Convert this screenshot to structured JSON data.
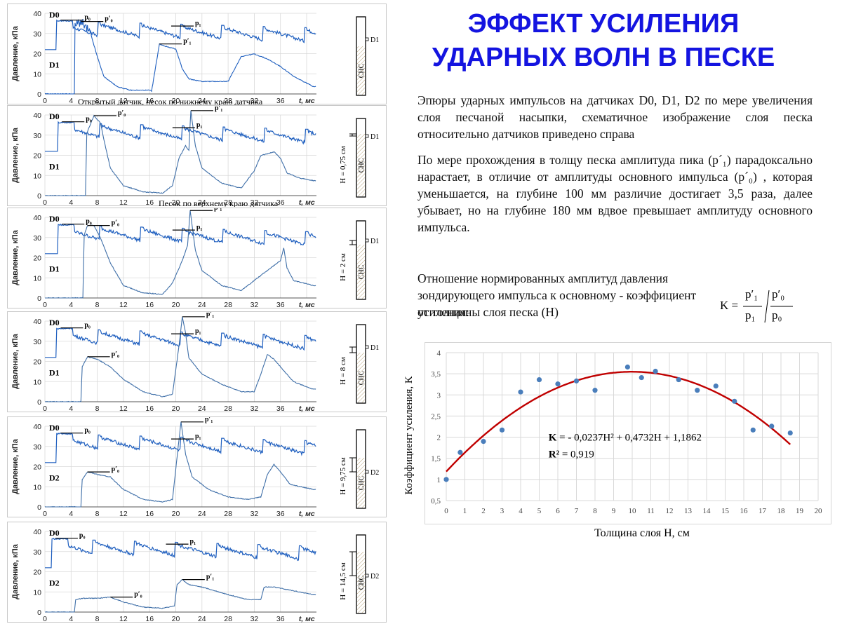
{
  "title": {
    "line1": "ЭФФЕКТ УСИЛЕНИЯ",
    "line2": "УДАРНЫХ ВОЛН В ПЕСКЕ"
  },
  "text": {
    "p1": "Эпюры ударных импульсов на датчиках D0, D1, D2 по мере увеличения слоя песчаной насыпки, схематичное изображение слоя песка относительно датчиков приведено справа",
    "p2": "По мере прохождения в толщу песка амплитуда пика (p´₁) парадоксально нарастает, в отличие от амплитуды основного импульса (p´₀) , которая уменьшается, на глубине 100 мм различие достигает 3,5 раза, далее убывает, но на глубине 180 мм вдвое превышает амплитуду основного импульса.",
    "p3": "Отношение нормированных амплитуд давления зондирующего импульса к основному - коэффициент усиления:",
    "p3b": " от толщины слоя песка (H)"
  },
  "formula": {
    "lhs": "K =",
    "num1": "p′₁",
    "den1": "p₁",
    "num2": "p′₀",
    "den2": "p₀"
  },
  "panels": [
    {
      "id": "panel1",
      "ylabel": "Давление, кПа",
      "sensor_top": "D0",
      "sensor_bottom": "D1",
      "caption": "Открытый датчик, песок по нижнему краю датчика",
      "h_label": "",
      "sensor_mark": "D1",
      "marker_top_p0": "p₀",
      "marker_top_p1": "p₁",
      "marker_bot_p0": "p′₀",
      "marker_bot_p1": "p′₁"
    },
    {
      "id": "panel2",
      "ylabel": "Давление, кПа",
      "sensor_top": "D0",
      "sensor_bottom": "D1",
      "caption": "Песок по верхнему краю датчика",
      "h_label": "H = 0,75 см",
      "sensor_mark": "D1",
      "marker_top_p0": "p₀",
      "marker_top_p1": "p₁",
      "marker_bot_p0": "p′₀",
      "marker_bot_p1": "p′₁"
    },
    {
      "id": "panel3",
      "ylabel": "Давление, кПа",
      "sensor_top": "D0",
      "sensor_bottom": "D1",
      "caption": "",
      "h_label": "H = 2 см",
      "sensor_mark": "D1",
      "marker_top_p0": "p₀",
      "marker_top_p1": "p₁",
      "marker_bot_p0": "p′₀",
      "marker_bot_p1": "p′₁"
    },
    {
      "id": "panel4",
      "ylabel": "Давление, кПа",
      "sensor_top": "D0",
      "sensor_bottom": "D1",
      "caption": "",
      "h_label": "H = 8 см",
      "sensor_mark": "D1",
      "marker_top_p0": "p₀",
      "marker_top_p1": "p₁",
      "marker_bot_p0": "p′₀",
      "marker_bot_p1": "p′₁"
    },
    {
      "id": "panel5",
      "ylabel": "Давление, кПа",
      "sensor_top": "D0",
      "sensor_bottom": "D2",
      "caption": "",
      "h_label": "H = 9,75 см",
      "sensor_mark": "D2",
      "marker_top_p0": "p₀",
      "marker_top_p1": "p₁",
      "marker_bot_p0": "p′₀",
      "marker_bot_p1": "p′₁"
    },
    {
      "id": "panel6",
      "ylabel": "Давление, кПа",
      "sensor_top": "D0",
      "sensor_bottom": "D2",
      "caption": "",
      "h_label": "H = 14,5 см",
      "sensor_mark": "D2",
      "marker_top_p0": "p₀",
      "marker_top_p1": "p₁",
      "marker_bot_p0": "p′₀",
      "marker_bot_p1": "p′₁"
    }
  ],
  "schematic_label": "СНС",
  "panel_axis": {
    "x_ticks": [
      "0",
      "4",
      "8",
      "12",
      "16",
      "20",
      "24",
      "28",
      "32",
      "36",
      "t, мс"
    ],
    "y_ticks": [
      "0",
      "10",
      "20",
      "30",
      "40"
    ]
  },
  "chart_data": {
    "type": "scatter",
    "xlabel": "Толщина слоя H, см",
    "ylabel": "Коэффициент усиления, K",
    "xlim": [
      0,
      20
    ],
    "ylim": [
      0.5,
      4
    ],
    "x_ticks": [
      0,
      1,
      2,
      3,
      4,
      5,
      6,
      7,
      8,
      9,
      10,
      11,
      12,
      13,
      14,
      15,
      16,
      17,
      18,
      19,
      20
    ],
    "y_ticks": [
      0.5,
      1,
      1.5,
      2,
      2.5,
      3,
      3.5,
      4
    ],
    "y_tick_labels": [
      "0,5",
      "1",
      "1,5",
      "2",
      "2,5",
      "3",
      "3,5",
      "4"
    ],
    "grid": true,
    "points": [
      {
        "x": 0,
        "y": 1.0
      },
      {
        "x": 0.75,
        "y": 1.64
      },
      {
        "x": 2,
        "y": 1.9
      },
      {
        "x": 3,
        "y": 2.17
      },
      {
        "x": 4,
        "y": 3.07
      },
      {
        "x": 5,
        "y": 3.36
      },
      {
        "x": 6,
        "y": 3.26
      },
      {
        "x": 7,
        "y": 3.33
      },
      {
        "x": 8,
        "y": 3.11
      },
      {
        "x": 9.75,
        "y": 3.66
      },
      {
        "x": 10.5,
        "y": 3.41
      },
      {
        "x": 11.25,
        "y": 3.56
      },
      {
        "x": 12.5,
        "y": 3.36
      },
      {
        "x": 13.5,
        "y": 3.11
      },
      {
        "x": 14.5,
        "y": 3.21
      },
      {
        "x": 15.5,
        "y": 2.85
      },
      {
        "x": 16.5,
        "y": 2.17
      },
      {
        "x": 17.5,
        "y": 2.26
      },
      {
        "x": 18.5,
        "y": 2.1
      }
    ],
    "fit": {
      "a": -0.0237,
      "b": 0.4732,
      "c": 1.1862,
      "x_from": 0,
      "x_to": 18.5
    },
    "equation_lhs": "K",
    "equation_rhs": " = - 0,0237H² + 0,4732H + 1,1862",
    "r2_lhs": "R²",
    "r2_rhs": " = 0,919",
    "colors": {
      "points": "#4a7ebb",
      "fit": "#c00000",
      "grid": "#d9d9d9"
    }
  }
}
